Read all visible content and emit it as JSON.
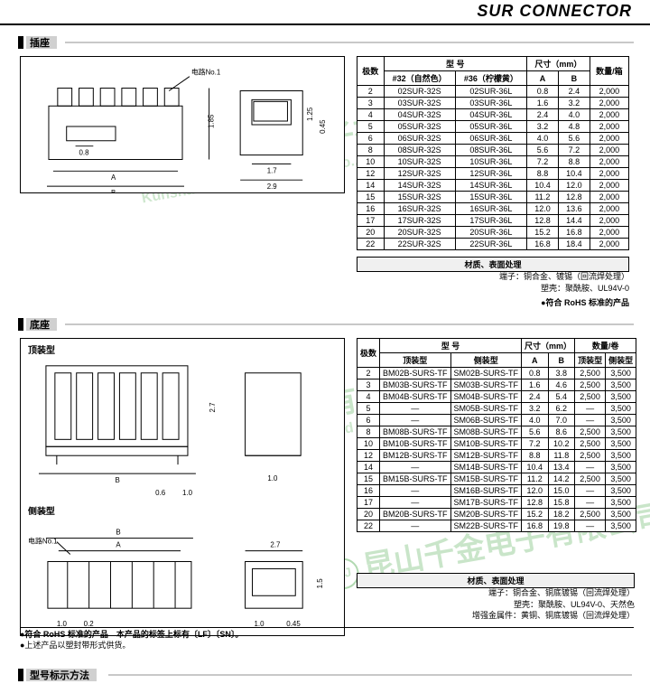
{
  "title": "SUR CONNECTOR",
  "watermark_cn": "昆山千金电子有限公司",
  "watermark_en": "Kunshan Qianjin Electronic Co.,Ltd",
  "section1": {
    "label": "插座",
    "diagram": {
      "circuit_label": "电路No.1",
      "dim_A": "A",
      "dim_B": "B",
      "d08": "0.8",
      "d185": "1.85",
      "d17": "1.7",
      "d29": "2.9",
      "d125": "1.25",
      "d045": "0.45"
    },
    "headers": {
      "poles": "极数",
      "model": "型 号",
      "col32": "#32（自然色）",
      "col36": "#36（柠檬黄）",
      "size": "尺寸（mm）",
      "A": "A",
      "B": "B",
      "qty": "数量/箱"
    },
    "rows": [
      {
        "p": "2",
        "m32": "02SUR-32S",
        "m36": "02SUR-36L",
        "a": "0.8",
        "b": "2.4",
        "q": "2,000"
      },
      {
        "p": "3",
        "m32": "03SUR-32S",
        "m36": "03SUR-36L",
        "a": "1.6",
        "b": "3.2",
        "q": "2,000"
      },
      {
        "p": "4",
        "m32": "04SUR-32S",
        "m36": "04SUR-36L",
        "a": "2.4",
        "b": "4.0",
        "q": "2,000"
      },
      {
        "p": "5",
        "m32": "05SUR-32S",
        "m36": "05SUR-36L",
        "a": "3.2",
        "b": "4.8",
        "q": "2,000"
      },
      {
        "p": "6",
        "m32": "06SUR-32S",
        "m36": "06SUR-36L",
        "a": "4.0",
        "b": "5.6",
        "q": "2,000"
      },
      {
        "p": "8",
        "m32": "08SUR-32S",
        "m36": "08SUR-36L",
        "a": "5.6",
        "b": "7.2",
        "q": "2,000"
      },
      {
        "p": "10",
        "m32": "10SUR-32S",
        "m36": "10SUR-36L",
        "a": "7.2",
        "b": "8.8",
        "q": "2,000"
      },
      {
        "p": "12",
        "m32": "12SUR-32S",
        "m36": "12SUR-36L",
        "a": "8.8",
        "b": "10.4",
        "q": "2,000"
      },
      {
        "p": "14",
        "m32": "14SUR-32S",
        "m36": "14SUR-36L",
        "a": "10.4",
        "b": "12.0",
        "q": "2,000"
      },
      {
        "p": "15",
        "m32": "15SUR-32S",
        "m36": "15SUR-36L",
        "a": "11.2",
        "b": "12.8",
        "q": "2,000"
      },
      {
        "p": "16",
        "m32": "16SUR-32S",
        "m36": "16SUR-36L",
        "a": "12.0",
        "b": "13.6",
        "q": "2,000"
      },
      {
        "p": "17",
        "m32": "17SUR-32S",
        "m36": "17SUR-36L",
        "a": "12.8",
        "b": "14.4",
        "q": "2,000"
      },
      {
        "p": "20",
        "m32": "20SUR-32S",
        "m36": "20SUR-36L",
        "a": "15.2",
        "b": "16.8",
        "q": "2,000"
      },
      {
        "p": "22",
        "m32": "22SUR-32S",
        "m36": "22SUR-36L",
        "a": "16.8",
        "b": "18.4",
        "q": "2,000"
      }
    ],
    "material_hdr": "材质、表面处理",
    "note1": "端子：铜合金、镀锡（回流焊处理）",
    "note2": "塑壳：聚酰胺、UL94V-0",
    "rohs": "●符合 RoHS 标准的产品"
  },
  "section2": {
    "label": "底座",
    "label_top": "顶装型",
    "label_side": "侧装型",
    "diagram": {
      "circuit_label": "电路No.1",
      "d10a": "1.0",
      "d06": "0.6",
      "d10b": "1.0",
      "d27a": "2.7",
      "d27b": "2.7",
      "d02": "0.2",
      "d045": "0.45",
      "d15": "1.5",
      "dim_A": "A",
      "dim_B": "B"
    },
    "headers": {
      "poles": "极数",
      "model": "型 号",
      "colTop": "顶装型",
      "colSide": "侧装型",
      "size": "尺寸（mm）",
      "A": "A",
      "B": "B",
      "qty": "数量/卷",
      "qtyTop": "顶装型",
      "qtySide": "侧装型"
    },
    "rows": [
      {
        "p": "2",
        "t": "BM02B-SURS-TF",
        "s": "SM02B-SURS-TF",
        "a": "0.8",
        "b": "3.8",
        "qt": "2,500",
        "qs": "3,500"
      },
      {
        "p": "3",
        "t": "BM03B-SURS-TF",
        "s": "SM03B-SURS-TF",
        "a": "1.6",
        "b": "4.6",
        "qt": "2,500",
        "qs": "3,500"
      },
      {
        "p": "4",
        "t": "BM04B-SURS-TF",
        "s": "SM04B-SURS-TF",
        "a": "2.4",
        "b": "5.4",
        "qt": "2,500",
        "qs": "3,500"
      },
      {
        "p": "5",
        "t": "—",
        "s": "SM05B-SURS-TF",
        "a": "3.2",
        "b": "6.2",
        "qt": "—",
        "qs": "3,500"
      },
      {
        "p": "6",
        "t": "—",
        "s": "SM06B-SURS-TF",
        "a": "4.0",
        "b": "7.0",
        "qt": "—",
        "qs": "3,500"
      },
      {
        "p": "8",
        "t": "BM08B-SURS-TF",
        "s": "SM08B-SURS-TF",
        "a": "5.6",
        "b": "8.6",
        "qt": "2,500",
        "qs": "3,500"
      },
      {
        "p": "10",
        "t": "BM10B-SURS-TF",
        "s": "SM10B-SURS-TF",
        "a": "7.2",
        "b": "10.2",
        "qt": "2,500",
        "qs": "3,500"
      },
      {
        "p": "12",
        "t": "BM12B-SURS-TF",
        "s": "SM12B-SURS-TF",
        "a": "8.8",
        "b": "11.8",
        "qt": "2,500",
        "qs": "3,500"
      },
      {
        "p": "14",
        "t": "—",
        "s": "SM14B-SURS-TF",
        "a": "10.4",
        "b": "13.4",
        "qt": "—",
        "qs": "3,500"
      },
      {
        "p": "15",
        "t": "BM15B-SURS-TF",
        "s": "SM15B-SURS-TF",
        "a": "11.2",
        "b": "14.2",
        "qt": "2,500",
        "qs": "3,500"
      },
      {
        "p": "16",
        "t": "—",
        "s": "SM16B-SURS-TF",
        "a": "12.0",
        "b": "15.0",
        "qt": "—",
        "qs": "3,500"
      },
      {
        "p": "17",
        "t": "—",
        "s": "SM17B-SURS-TF",
        "a": "12.8",
        "b": "15.8",
        "qt": "—",
        "qs": "3,500"
      },
      {
        "p": "20",
        "t": "BM20B-SURS-TF",
        "s": "SM20B-SURS-TF",
        "a": "15.2",
        "b": "18.2",
        "qt": "2,500",
        "qs": "3,500"
      },
      {
        "p": "22",
        "t": "—",
        "s": "SM22B-SURS-TF",
        "a": "16.8",
        "b": "19.8",
        "qt": "—",
        "qs": "3,500"
      }
    ],
    "material_hdr": "材质、表面处理",
    "note1": "端子：铜合金、铜底镀锡（回流焊处理）",
    "note2": "塑壳：聚酰胺、UL94V-0、天然色",
    "note3": "增强金属件：黄铜、铜底镀锡（回流焊处理）",
    "rohs": "●符合 RoHS 标准的产品　本产品的标签上标有〔LF〕〔SN〕。",
    "pkg": "●上述产品以塑封带形式供货。"
  },
  "section3": {
    "label": "型号标示方法"
  }
}
